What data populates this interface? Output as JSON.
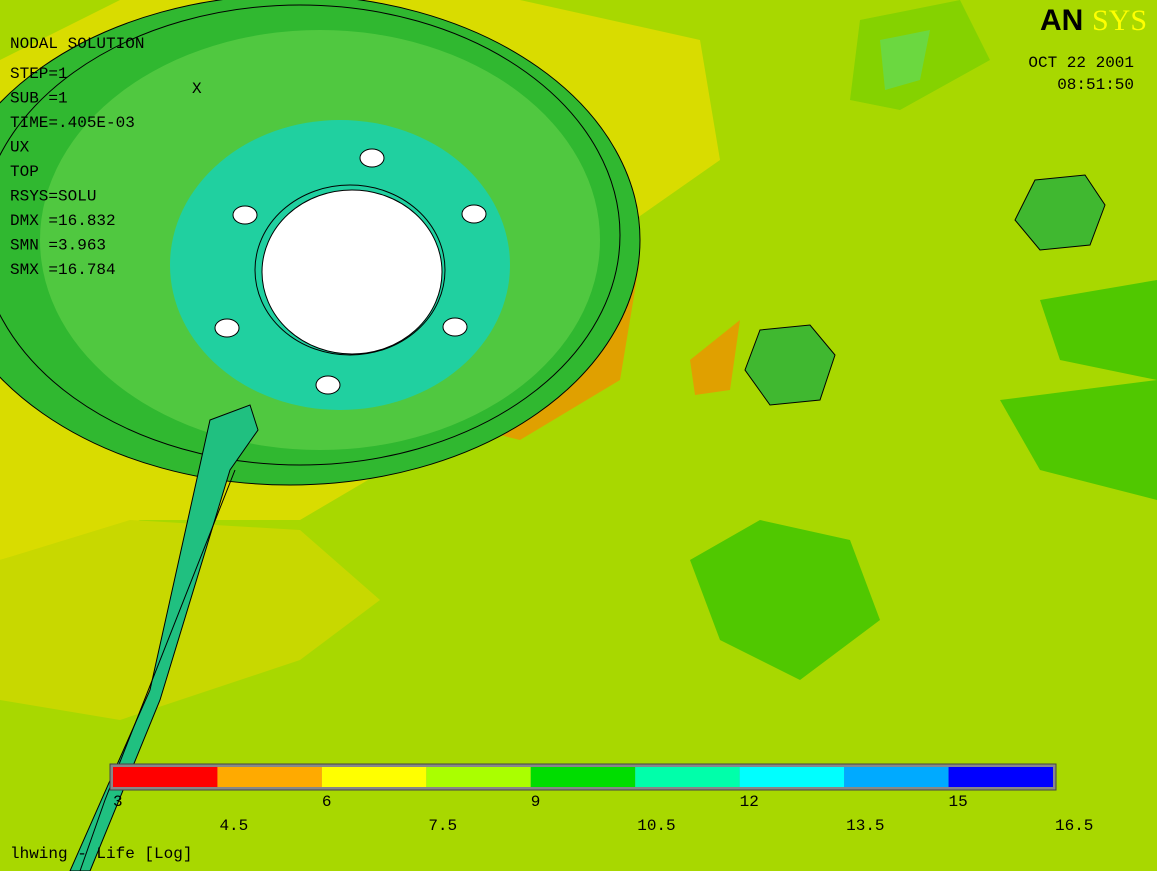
{
  "info": {
    "title": "NODAL SOLUTION",
    "lines": [
      "STEP=1",
      "SUB =1",
      "TIME=.405E-03",
      "UX",
      "TOP",
      "RSYS=SOLU",
      "DMX =16.832",
      "SMN =3.963",
      "SMX =16.784"
    ]
  },
  "logo": {
    "left": "AN",
    "right": "SYS"
  },
  "date": "OCT 22 2001",
  "time": "08:51:50",
  "triad": "X",
  "legend": {
    "colors": [
      "#ff0000",
      "#ffaa00",
      "#ffff00",
      "#aaff00",
      "#00dd00",
      "#00ffaa",
      "#00ffff",
      "#00aaff",
      "#0000ff"
    ],
    "labels": [
      "3",
      "4.5",
      "6",
      "7.5",
      "9",
      "10.5",
      "12",
      "13.5",
      "15",
      "16.5"
    ]
  },
  "caption": "lhwing - Life [Log]"
}
